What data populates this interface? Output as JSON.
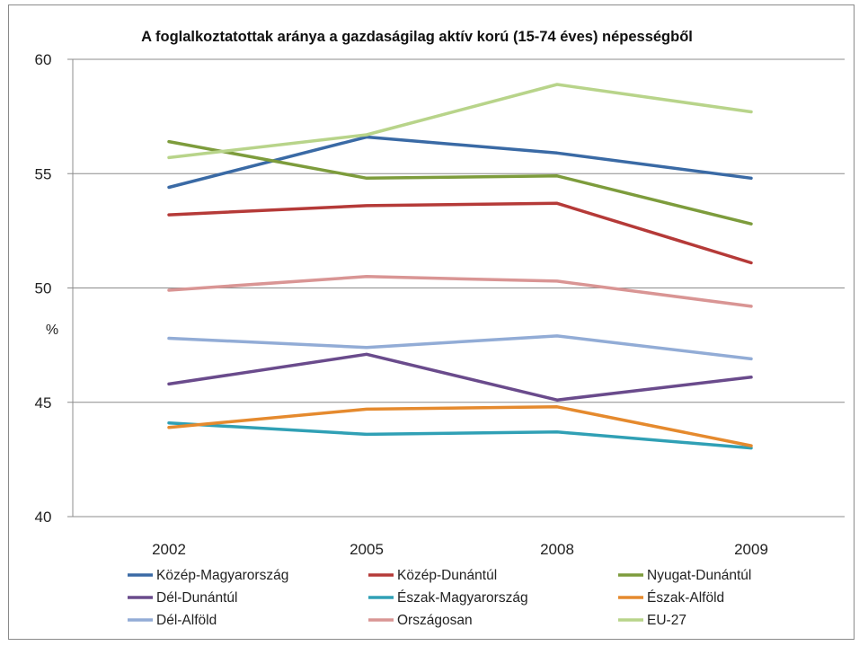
{
  "chart_data": {
    "type": "line",
    "title": "A foglalkoztatottak aránya a gazdaságilag aktív korú (15-74 éves) népességből",
    "ylabel": "%",
    "xlabel": "",
    "categories": [
      "2002",
      "2005",
      "2008",
      "2009"
    ],
    "ylim": [
      40,
      60
    ],
    "yticks": [
      40,
      45,
      50,
      55,
      60
    ],
    "grid": "horizontal",
    "legend_position": "bottom",
    "series": [
      {
        "name": "Közép-Magyarország",
        "color": "#3a6aa5",
        "values": [
          54.4,
          56.6,
          55.9,
          54.8
        ]
      },
      {
        "name": "Közép-Dunántúl",
        "color": "#b53a38",
        "values": [
          53.2,
          53.6,
          53.7,
          51.1
        ]
      },
      {
        "name": "Nyugat-Dunántúl",
        "color": "#7d9c3c",
        "values": [
          56.4,
          54.8,
          54.9,
          52.8
        ]
      },
      {
        "name": "Dél-Dunántúl",
        "color": "#6a4b8c",
        "values": [
          45.8,
          47.1,
          45.1,
          46.1
        ]
      },
      {
        "name": "Észak-Magyarország",
        "color": "#30a0b5",
        "values": [
          44.1,
          43.6,
          43.7,
          43.0
        ]
      },
      {
        "name": "Észak-Alföld",
        "color": "#e58a2e",
        "values": [
          43.9,
          44.7,
          44.8,
          43.1
        ]
      },
      {
        "name": "Dél-Alföld",
        "color": "#92acd6",
        "values": [
          47.8,
          47.4,
          47.9,
          46.9
        ]
      },
      {
        "name": "Országosan",
        "color": "#d99594",
        "values": [
          49.9,
          50.5,
          50.3,
          49.2
        ]
      },
      {
        "name": "EU-27",
        "color": "#b8d48a",
        "values": [
          55.7,
          56.7,
          58.9,
          57.7
        ]
      }
    ]
  }
}
